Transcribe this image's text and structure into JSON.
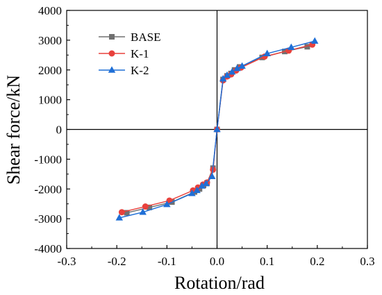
{
  "chart_data": {
    "type": "line",
    "title": "",
    "xlabel": "Rotation/rad",
    "ylabel": "Shear force/kN",
    "xlim": [
      -0.3,
      0.3
    ],
    "ylim": [
      -4000,
      4000
    ],
    "xticks": [
      -0.3,
      -0.2,
      -0.1,
      0.0,
      0.1,
      0.2,
      0.3
    ],
    "yticks": [
      -4000,
      -3000,
      -2000,
      -1000,
      0,
      1000,
      2000,
      3000,
      4000
    ],
    "xtick_labels": [
      "-0.3",
      "-0.2",
      "-0.1",
      "0.0",
      "0.1",
      "0.2",
      "0.3"
    ],
    "ytick_labels": [
      "-4000",
      "-3000",
      "-2000",
      "-1000",
      "0",
      "1000",
      "2000",
      "3000",
      "4000"
    ],
    "grid": false,
    "zero_lines": true,
    "legend_position": "top-left",
    "series": [
      {
        "name": "BASE",
        "color": "#707070",
        "marker": "square",
        "points": [
          [
            -0.18,
            -2800
          ],
          [
            -0.135,
            -2620
          ],
          [
            -0.09,
            -2440
          ],
          [
            -0.045,
            -2100
          ],
          [
            -0.035,
            -2000
          ],
          [
            -0.027,
            -1880
          ],
          [
            -0.02,
            -1800
          ],
          [
            -0.008,
            -1300
          ],
          [
            0.0,
            0
          ],
          [
            0.012,
            1680
          ],
          [
            0.02,
            1800
          ],
          [
            0.028,
            1880
          ],
          [
            0.035,
            2000
          ],
          [
            0.045,
            2100
          ],
          [
            0.09,
            2420
          ],
          [
            0.135,
            2620
          ],
          [
            0.18,
            2780
          ]
        ]
      },
      {
        "name": "K-1",
        "color": "#e8413c",
        "marker": "circle",
        "points": [
          [
            -0.19,
            -2780
          ],
          [
            -0.143,
            -2590
          ],
          [
            -0.095,
            -2390
          ],
          [
            -0.048,
            -2050
          ],
          [
            -0.038,
            -1950
          ],
          [
            -0.028,
            -1850
          ],
          [
            -0.02,
            -1780
          ],
          [
            -0.008,
            -1350
          ],
          [
            0.0,
            0
          ],
          [
            0.012,
            1650
          ],
          [
            0.02,
            1780
          ],
          [
            0.028,
            1850
          ],
          [
            0.038,
            1980
          ],
          [
            0.048,
            2080
          ],
          [
            0.095,
            2450
          ],
          [
            0.143,
            2650
          ],
          [
            0.19,
            2850
          ]
        ]
      },
      {
        "name": "K-2",
        "color": "#1f6fd6",
        "marker": "triangle",
        "points": [
          [
            -0.195,
            -2970
          ],
          [
            -0.148,
            -2780
          ],
          [
            -0.1,
            -2520
          ],
          [
            -0.05,
            -2150
          ],
          [
            -0.04,
            -2050
          ],
          [
            -0.03,
            -1900
          ],
          [
            -0.022,
            -1820
          ],
          [
            -0.01,
            -1580
          ],
          [
            0.0,
            0
          ],
          [
            0.012,
            1700
          ],
          [
            0.02,
            1820
          ],
          [
            0.03,
            1930
          ],
          [
            0.04,
            2050
          ],
          [
            0.05,
            2130
          ],
          [
            0.1,
            2550
          ],
          [
            0.148,
            2760
          ],
          [
            0.195,
            2970
          ]
        ]
      }
    ]
  }
}
